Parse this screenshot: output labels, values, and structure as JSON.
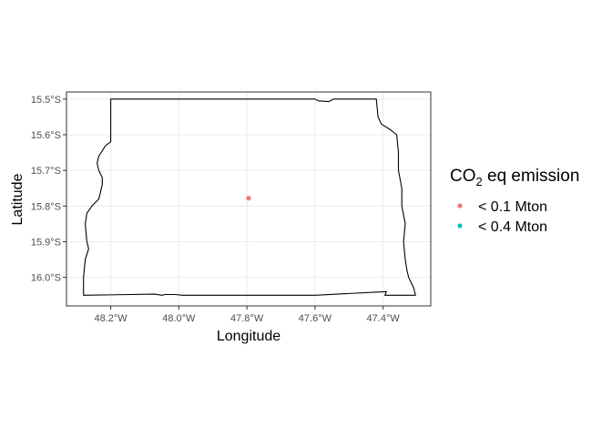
{
  "chart_data": {
    "type": "scatter",
    "xlabel": "Longitude",
    "ylabel": "Latitude",
    "x_ticks": [
      {
        "value": -48.2,
        "label": "48.2°W"
      },
      {
        "value": -48.0,
        "label": "48.0°W"
      },
      {
        "value": -47.8,
        "label": "47.8°W"
      },
      {
        "value": -47.6,
        "label": "47.6°W"
      },
      {
        "value": -47.4,
        "label": "47.4°W"
      }
    ],
    "y_ticks": [
      {
        "value": -15.5,
        "label": "15.5°S"
      },
      {
        "value": -15.6,
        "label": "15.6°S"
      },
      {
        "value": -15.7,
        "label": "15.7°S"
      },
      {
        "value": -15.8,
        "label": "15.8°S"
      },
      {
        "value": -15.9,
        "label": "15.9°S"
      },
      {
        "value": -16.0,
        "label": "16.0°S"
      }
    ],
    "xlim": [
      -48.33,
      -47.26
    ],
    "ylim": [
      -16.08,
      -15.48
    ],
    "grid": true,
    "legend": {
      "title_main": "CO",
      "title_sub": "2",
      "title_rest": " eq emission",
      "position": "right",
      "entries": [
        {
          "label": "< 0.1 Mton",
          "color": "#F8766D"
        },
        {
          "label": "< 0.4 Mton",
          "color": "#00BFC4"
        }
      ]
    },
    "points": [
      {
        "lon": -47.795,
        "lat": -15.778,
        "category": "< 0.1 Mton",
        "color": "#F8766D"
      }
    ],
    "boundary": {
      "outline_color": "#000000",
      "vertices": [
        [
          -48.2,
          -15.5
        ],
        [
          -47.6,
          -15.5
        ],
        [
          -47.59,
          -15.505
        ],
        [
          -47.56,
          -15.507
        ],
        [
          -47.545,
          -15.5
        ],
        [
          -47.42,
          -15.5
        ],
        [
          -47.415,
          -15.55
        ],
        [
          -47.405,
          -15.57
        ],
        [
          -47.38,
          -15.585
        ],
        [
          -47.36,
          -15.6
        ],
        [
          -47.355,
          -15.65
        ],
        [
          -47.355,
          -15.7
        ],
        [
          -47.345,
          -15.75
        ],
        [
          -47.345,
          -15.8
        ],
        [
          -47.335,
          -15.85
        ],
        [
          -47.34,
          -15.9
        ],
        [
          -47.335,
          -15.95
        ],
        [
          -47.33,
          -15.98
        ],
        [
          -47.325,
          -16.0
        ],
        [
          -47.31,
          -16.03
        ],
        [
          -47.305,
          -16.05
        ],
        [
          -47.395,
          -16.05
        ],
        [
          -47.39,
          -16.04
        ],
        [
          -47.6,
          -16.05
        ],
        [
          -47.99,
          -16.05
        ],
        [
          -48.01,
          -16.048
        ],
        [
          -48.04,
          -16.048
        ],
        [
          -48.05,
          -16.05
        ],
        [
          -48.07,
          -16.047
        ],
        [
          -48.28,
          -16.05
        ],
        [
          -48.28,
          -16.0
        ],
        [
          -48.275,
          -15.95
        ],
        [
          -48.265,
          -15.92
        ],
        [
          -48.27,
          -15.9
        ],
        [
          -48.275,
          -15.85
        ],
        [
          -48.27,
          -15.82
        ],
        [
          -48.255,
          -15.8
        ],
        [
          -48.235,
          -15.78
        ],
        [
          -48.23,
          -15.76
        ],
        [
          -48.225,
          -15.74
        ],
        [
          -48.225,
          -15.72
        ],
        [
          -48.235,
          -15.7
        ],
        [
          -48.24,
          -15.68
        ],
        [
          -48.235,
          -15.66
        ],
        [
          -48.215,
          -15.63
        ],
        [
          -48.2,
          -15.62
        ],
        [
          -48.2,
          -15.5
        ]
      ]
    }
  }
}
